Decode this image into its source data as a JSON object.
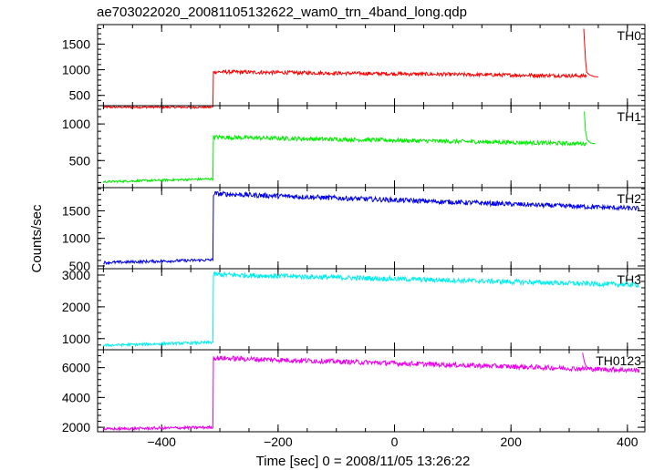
{
  "chart_data": {
    "type": "line",
    "title": "ae703022020_20081105132622_wam0_trn_4band_long.qdp",
    "xlabel": "Time [sec] 0 = 2008/11/05 13:26:22",
    "ylabel": "Counts/sec",
    "xlim": [
      -510,
      430
    ],
    "xticks": [
      -400,
      -200,
      0,
      200,
      400
    ],
    "xtick_labels": [
      "−400",
      "−200",
      "0",
      "200",
      "400"
    ],
    "grid": false,
    "panels": [
      {
        "name": "TH0",
        "color": "#ff0000",
        "ylim": [
          300,
          1880
        ],
        "yticks": [
          500,
          1000,
          1500
        ],
        "ytick_labels": [
          "500",
          "1000",
          "1500"
        ],
        "series": [
          {
            "x": [
              -500,
              -312,
              -311,
              330
            ],
            "y": [
              270,
              270,
              960,
              880
            ]
          },
          {
            "x": [
              325,
              328,
              330,
              335,
              342,
              350
            ],
            "y": [
              1800,
              1200,
              950,
              900,
              870,
              860
            ]
          }
        ]
      },
      {
        "name": "TH1",
        "color": "#00ee00",
        "ylim": [
          130,
          1250
        ],
        "yticks": [
          500,
          1000
        ],
        "ytick_labels": [
          "500",
          "1000"
        ],
        "series": [
          {
            "x": [
              -500,
              -312,
              -311,
              330
            ],
            "y": [
              210,
              250,
              820,
              730
            ]
          },
          {
            "x": [
              326,
              328,
              331,
              337,
              345
            ],
            "y": [
              1170,
              900,
              780,
              740,
              730
            ]
          }
        ]
      },
      {
        "name": "TH2",
        "color": "#0000ee",
        "ylim": [
          450,
          1920
        ],
        "yticks": [
          500,
          1000,
          1500
        ],
        "ytick_labels": [
          "500",
          "1000",
          "1500"
        ],
        "series": [
          {
            "x": [
              -500,
              -312,
              -311,
              420
            ],
            "y": [
              560,
              610,
              1810,
              1540
            ]
          }
        ]
      },
      {
        "name": "TH3",
        "color": "#00eeee",
        "ylim": [
          650,
          3200
        ],
        "yticks": [
          1000,
          2000,
          3000
        ],
        "ytick_labels": [
          "1000",
          "2000",
          "3000"
        ],
        "series": [
          {
            "x": [
              -500,
              -312,
              -311,
              420
            ],
            "y": [
              790,
              880,
              3020,
              2690
            ]
          }
        ]
      },
      {
        "name": "TH0123",
        "color": "#ee00ee",
        "ylim": [
          1700,
          7200
        ],
        "yticks": [
          2000,
          4000,
          6000
        ],
        "ytick_labels": [
          "2000",
          "4000",
          "6000"
        ],
        "series": [
          {
            "x": [
              -500,
              -312,
              -311,
              420
            ],
            "y": [
              1880,
              2000,
              6650,
              5820
            ]
          },
          {
            "x": [
              323,
              326,
              329,
              334,
              342
            ],
            "y": [
              7000,
              6400,
              6100,
              5960,
              5900
            ]
          }
        ]
      }
    ]
  }
}
